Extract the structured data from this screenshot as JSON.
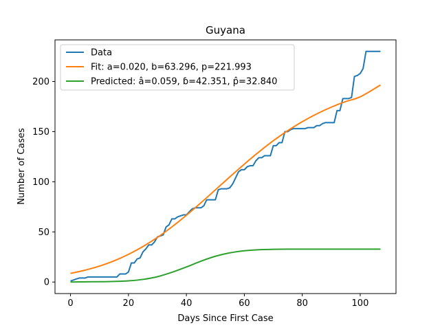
{
  "chart_data": {
    "type": "line",
    "title": "Guyana",
    "xlabel": "Days Since First Case",
    "ylabel": "Number of Cases",
    "xlim": [
      -5.35,
      112.35
    ],
    "ylim": [
      -11.5,
      241.5
    ],
    "xticks": [
      0,
      20,
      40,
      60,
      80,
      100
    ],
    "yticks": [
      0,
      50,
      100,
      150,
      200
    ],
    "legend_position": "upper-left",
    "series": [
      {
        "name": "Data",
        "color": "#1f77b4",
        "x": [
          0,
          1,
          2,
          3,
          4,
          5,
          6,
          7,
          8,
          9,
          10,
          11,
          12,
          13,
          14,
          15,
          16,
          17,
          18,
          19,
          20,
          21,
          22,
          23,
          24,
          25,
          26,
          27,
          28,
          29,
          30,
          31,
          32,
          33,
          34,
          35,
          36,
          37,
          38,
          39,
          40,
          41,
          42,
          43,
          44,
          45,
          46,
          47,
          48,
          49,
          50,
          51,
          52,
          53,
          54,
          55,
          56,
          57,
          58,
          59,
          60,
          61,
          62,
          63,
          64,
          65,
          66,
          67,
          68,
          69,
          70,
          71,
          72,
          73,
          74,
          75,
          76,
          77,
          78,
          79,
          80,
          81,
          82,
          83,
          84,
          85,
          86,
          87,
          88,
          89,
          90,
          91,
          92,
          93,
          94,
          95,
          96,
          97,
          98,
          99,
          100,
          101,
          102,
          103,
          104,
          105,
          106,
          107
        ],
        "values": [
          1,
          2,
          3,
          4,
          4,
          4,
          5,
          5,
          5,
          5,
          5,
          5,
          5,
          5,
          5,
          5,
          5,
          8,
          8,
          8,
          10,
          19,
          19,
          23,
          24,
          30,
          33,
          37,
          37,
          40,
          45,
          46,
          47,
          55,
          57,
          63,
          63,
          65,
          66,
          67,
          67,
          70,
          73,
          74,
          74,
          74,
          76,
          82,
          82,
          82,
          82,
          92,
          93,
          93,
          93,
          94,
          98,
          104,
          110,
          112,
          112,
          115,
          116,
          116,
          121,
          124,
          124,
          126,
          126,
          126,
          136,
          136,
          139,
          139,
          150,
          150,
          152,
          153,
          153,
          153,
          153,
          153,
          154,
          154,
          154,
          156,
          156,
          158,
          159,
          159,
          159,
          159,
          171,
          171,
          183,
          183,
          183,
          184,
          205,
          206,
          208,
          213,
          230,
          230,
          230,
          230,
          230,
          230
        ]
      },
      {
        "name": "Fit: a=0.020, b=63.296, p=221.993",
        "color": "#ff7f0e",
        "x": [
          0,
          5,
          10,
          15,
          20,
          25,
          30,
          35,
          40,
          45,
          50,
          55,
          60,
          65,
          70,
          75,
          80,
          85,
          90,
          95,
          100,
          107
        ],
        "values": [
          8.6,
          11.8,
          15.9,
          21.1,
          27.6,
          35.4,
          44.5,
          55.0,
          66.6,
          79.0,
          91.9,
          104.9,
          117.6,
          129.7,
          140.9,
          151.0,
          159.9,
          167.7,
          174.4,
          180.0,
          184.7,
          196.5
        ]
      },
      {
        "name": "Predicted: â=0.059, ɓ=42.351, p̂=32.840",
        "color": "#2ca02c",
        "x": [
          0,
          5,
          10,
          15,
          20,
          25,
          30,
          35,
          40,
          45,
          50,
          55,
          60,
          65,
          70,
          75,
          80,
          85,
          90,
          95,
          100,
          107
        ],
        "values": [
          0.0,
          0.2,
          0.3,
          0.6,
          1.2,
          2.6,
          5.3,
          9.7,
          15.0,
          20.8,
          25.7,
          29.1,
          31.2,
          32.2,
          32.6,
          32.8,
          32.8,
          32.8,
          32.8,
          32.8,
          32.8,
          32.8
        ]
      }
    ]
  }
}
